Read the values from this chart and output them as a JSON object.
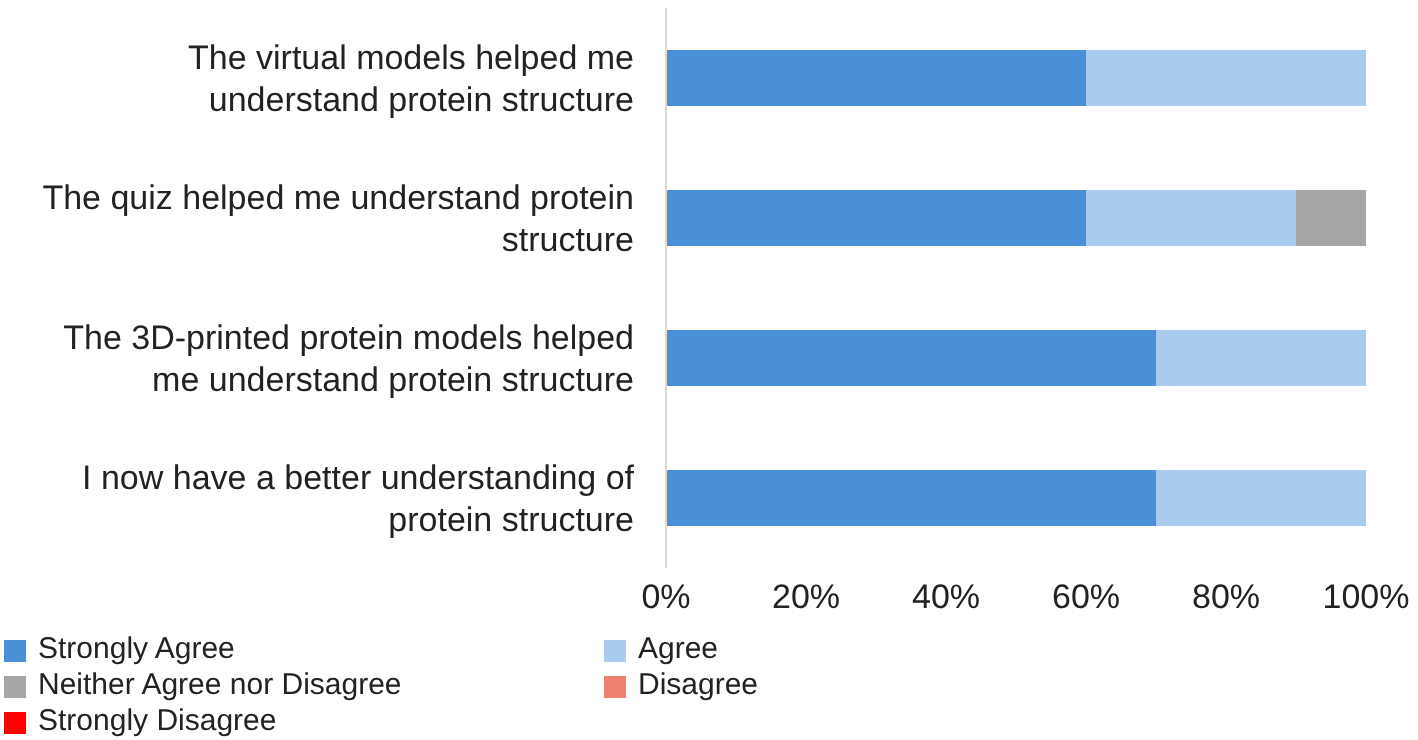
{
  "chart_data": {
    "type": "bar",
    "orientation": "horizontal",
    "stacked": true,
    "categories": [
      "The virtual models helped me understand protein structure",
      "The quiz helped me understand protein structure",
      "The 3D-printed protein models helped me understand protein structure",
      "I now have a better understanding of protein structure"
    ],
    "series": [
      {
        "name": "Strongly Agree",
        "color": "#4a90d9",
        "values": [
          60,
          60,
          70,
          70
        ]
      },
      {
        "name": "Agree",
        "color": "#a9cbee",
        "values": [
          40,
          30,
          30,
          30
        ]
      },
      {
        "name": "Neither Agree nor Disagree",
        "color": "#a6a6a6",
        "values": [
          0,
          10,
          0,
          0
        ]
      },
      {
        "name": "Disagree",
        "color": "#f08070",
        "values": [
          0,
          0,
          0,
          0
        ]
      },
      {
        "name": "Strongly Disagree",
        "color": "#ff0000",
        "values": [
          0,
          0,
          0,
          0
        ]
      }
    ],
    "xlim": [
      0,
      100
    ],
    "xticks": [
      {
        "value": 0,
        "label": "0%"
      },
      {
        "value": 20,
        "label": "20%"
      },
      {
        "value": 40,
        "label": "40%"
      },
      {
        "value": 60,
        "label": "60%"
      },
      {
        "value": 80,
        "label": "80%"
      },
      {
        "value": 100,
        "label": "100%"
      }
    ],
    "grid": false,
    "legend": "bottom"
  }
}
